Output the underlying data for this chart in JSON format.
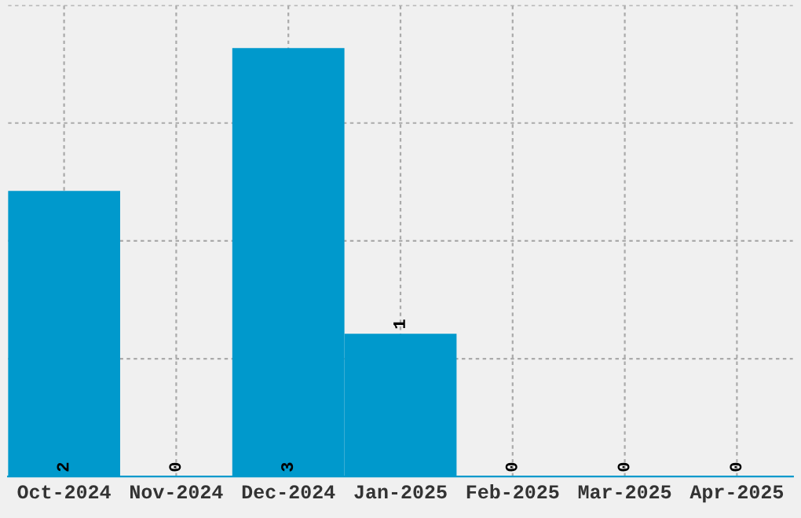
{
  "chart_data": {
    "type": "bar",
    "categories": [
      "Oct-2024",
      "Nov-2024",
      "Dec-2024",
      "Jan-2025",
      "Feb-2025",
      "Mar-2025",
      "Apr-2025"
    ],
    "values": [
      2,
      0,
      3,
      1,
      0,
      0,
      0
    ],
    "color": "#0099cc",
    "ylim": [
      0,
      3.3
    ],
    "yticks": [
      {
        "value": 0.825,
        "label": null
      },
      {
        "value": 1.65,
        "label": null
      },
      {
        "value": 2.475,
        "label": null
      },
      {
        "value": 3.3,
        "label": null
      }
    ],
    "tick_labels": "x",
    "grid": true,
    "data_labels": true
  }
}
